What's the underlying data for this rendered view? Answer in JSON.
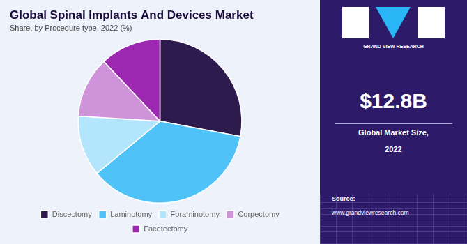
{
  "chart_data": {
    "type": "pie",
    "title": "Global Spinal Implants And Devices Market",
    "subtitle": "Share, by Procedure type, 2022 (%)",
    "categories": [
      "Discectomy",
      "Laminotomy",
      "Foraminotomy",
      "Corpectomy",
      "Facetectomy"
    ],
    "values": [
      28,
      36,
      12,
      12,
      12
    ],
    "colors": [
      "#2d1b4e",
      "#4fc3f7",
      "#b3e5fc",
      "#ce93d8",
      "#9c27b0"
    ],
    "legend": "bottom",
    "annotations": [
      "GRAND VIEW RESEARCH",
      "$12.8B",
      "Global Market Size,",
      "2022",
      "Source:",
      "www.grandviewresearch.com"
    ]
  }
}
